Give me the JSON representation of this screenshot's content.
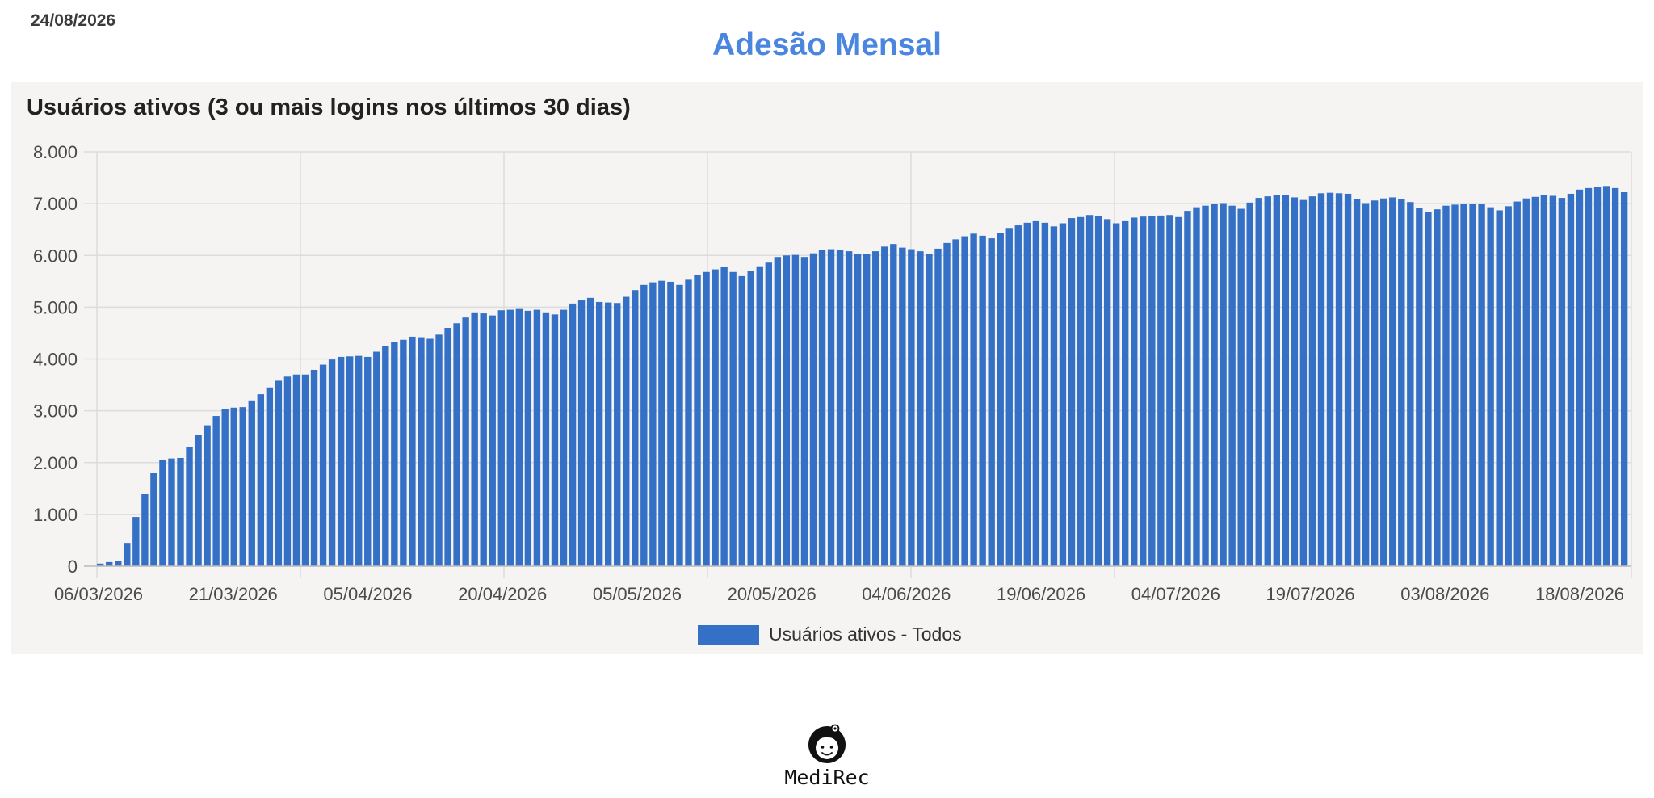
{
  "header": {
    "date": "24/08/2026",
    "title": "Adesão Mensal"
  },
  "colors": {
    "title": "#4a86e0",
    "bar": "#3471c6",
    "panel_bg": "#f5f4f3",
    "grid": "#dcdcdc"
  },
  "chart_data": {
    "type": "bar",
    "title": "Usuários ativos (3 ou mais logins nos últimos 30 dias)",
    "xlabel": "",
    "ylabel": "",
    "ylim": [
      0,
      8000
    ],
    "y_ticks": [
      "0",
      "1.000",
      "2.000",
      "3.000",
      "4.000",
      "5.000",
      "6.000",
      "7.000",
      "8.000"
    ],
    "x_ticks": [
      "06/03/2026",
      "21/03/2026",
      "05/04/2026",
      "20/04/2026",
      "05/05/2026",
      "20/05/2026",
      "04/06/2026",
      "19/06/2026",
      "04/07/2026",
      "19/07/2026",
      "03/08/2026",
      "18/08/2026"
    ],
    "grid": true,
    "legend_position": "bottom",
    "series": [
      {
        "name": "Usuários ativos - Todos",
        "values": [
          50,
          80,
          100,
          450,
          950,
          1400,
          1800,
          2050,
          2080,
          2090,
          2300,
          2530,
          2720,
          2900,
          3030,
          3060,
          3070,
          3200,
          3320,
          3450,
          3580,
          3660,
          3700,
          3700,
          3790,
          3890,
          3990,
          4040,
          4050,
          4060,
          4040,
          4140,
          4250,
          4320,
          4370,
          4430,
          4420,
          4390,
          4470,
          4600,
          4690,
          4800,
          4900,
          4880,
          4840,
          4940,
          4950,
          4980,
          4930,
          4950,
          4900,
          4860,
          4950,
          5070,
          5130,
          5180,
          5100,
          5090,
          5080,
          5200,
          5330,
          5430,
          5480,
          5510,
          5490,
          5430,
          5530,
          5630,
          5680,
          5730,
          5770,
          5680,
          5600,
          5700,
          5790,
          5860,
          5970,
          6000,
          6010,
          5970,
          6040,
          6110,
          6120,
          6100,
          6080,
          6020,
          6020,
          6080,
          6170,
          6220,
          6150,
          6120,
          6080,
          6020,
          6130,
          6240,
          6310,
          6370,
          6420,
          6380,
          6330,
          6440,
          6530,
          6580,
          6630,
          6660,
          6630,
          6560,
          6620,
          6720,
          6740,
          6780,
          6760,
          6700,
          6620,
          6660,
          6730,
          6750,
          6760,
          6770,
          6780,
          6740,
          6860,
          6930,
          6960,
          6990,
          7010,
          6960,
          6900,
          7020,
          7110,
          7140,
          7160,
          7170,
          7120,
          7070,
          7140,
          7200,
          7210,
          7200,
          7190,
          7090,
          7010,
          7060,
          7100,
          7120,
          7090,
          7030,
          6910,
          6840,
          6890,
          6960,
          6980,
          6990,
          7000,
          6990,
          6930,
          6870,
          6950,
          7040,
          7100,
          7130,
          7170,
          7150,
          7110,
          7190,
          7270,
          7300,
          7320,
          7340,
          7300,
          7220
        ]
      }
    ]
  },
  "brand": {
    "name": "MediRec",
    "logo_icon": "doctor-face-icon"
  }
}
